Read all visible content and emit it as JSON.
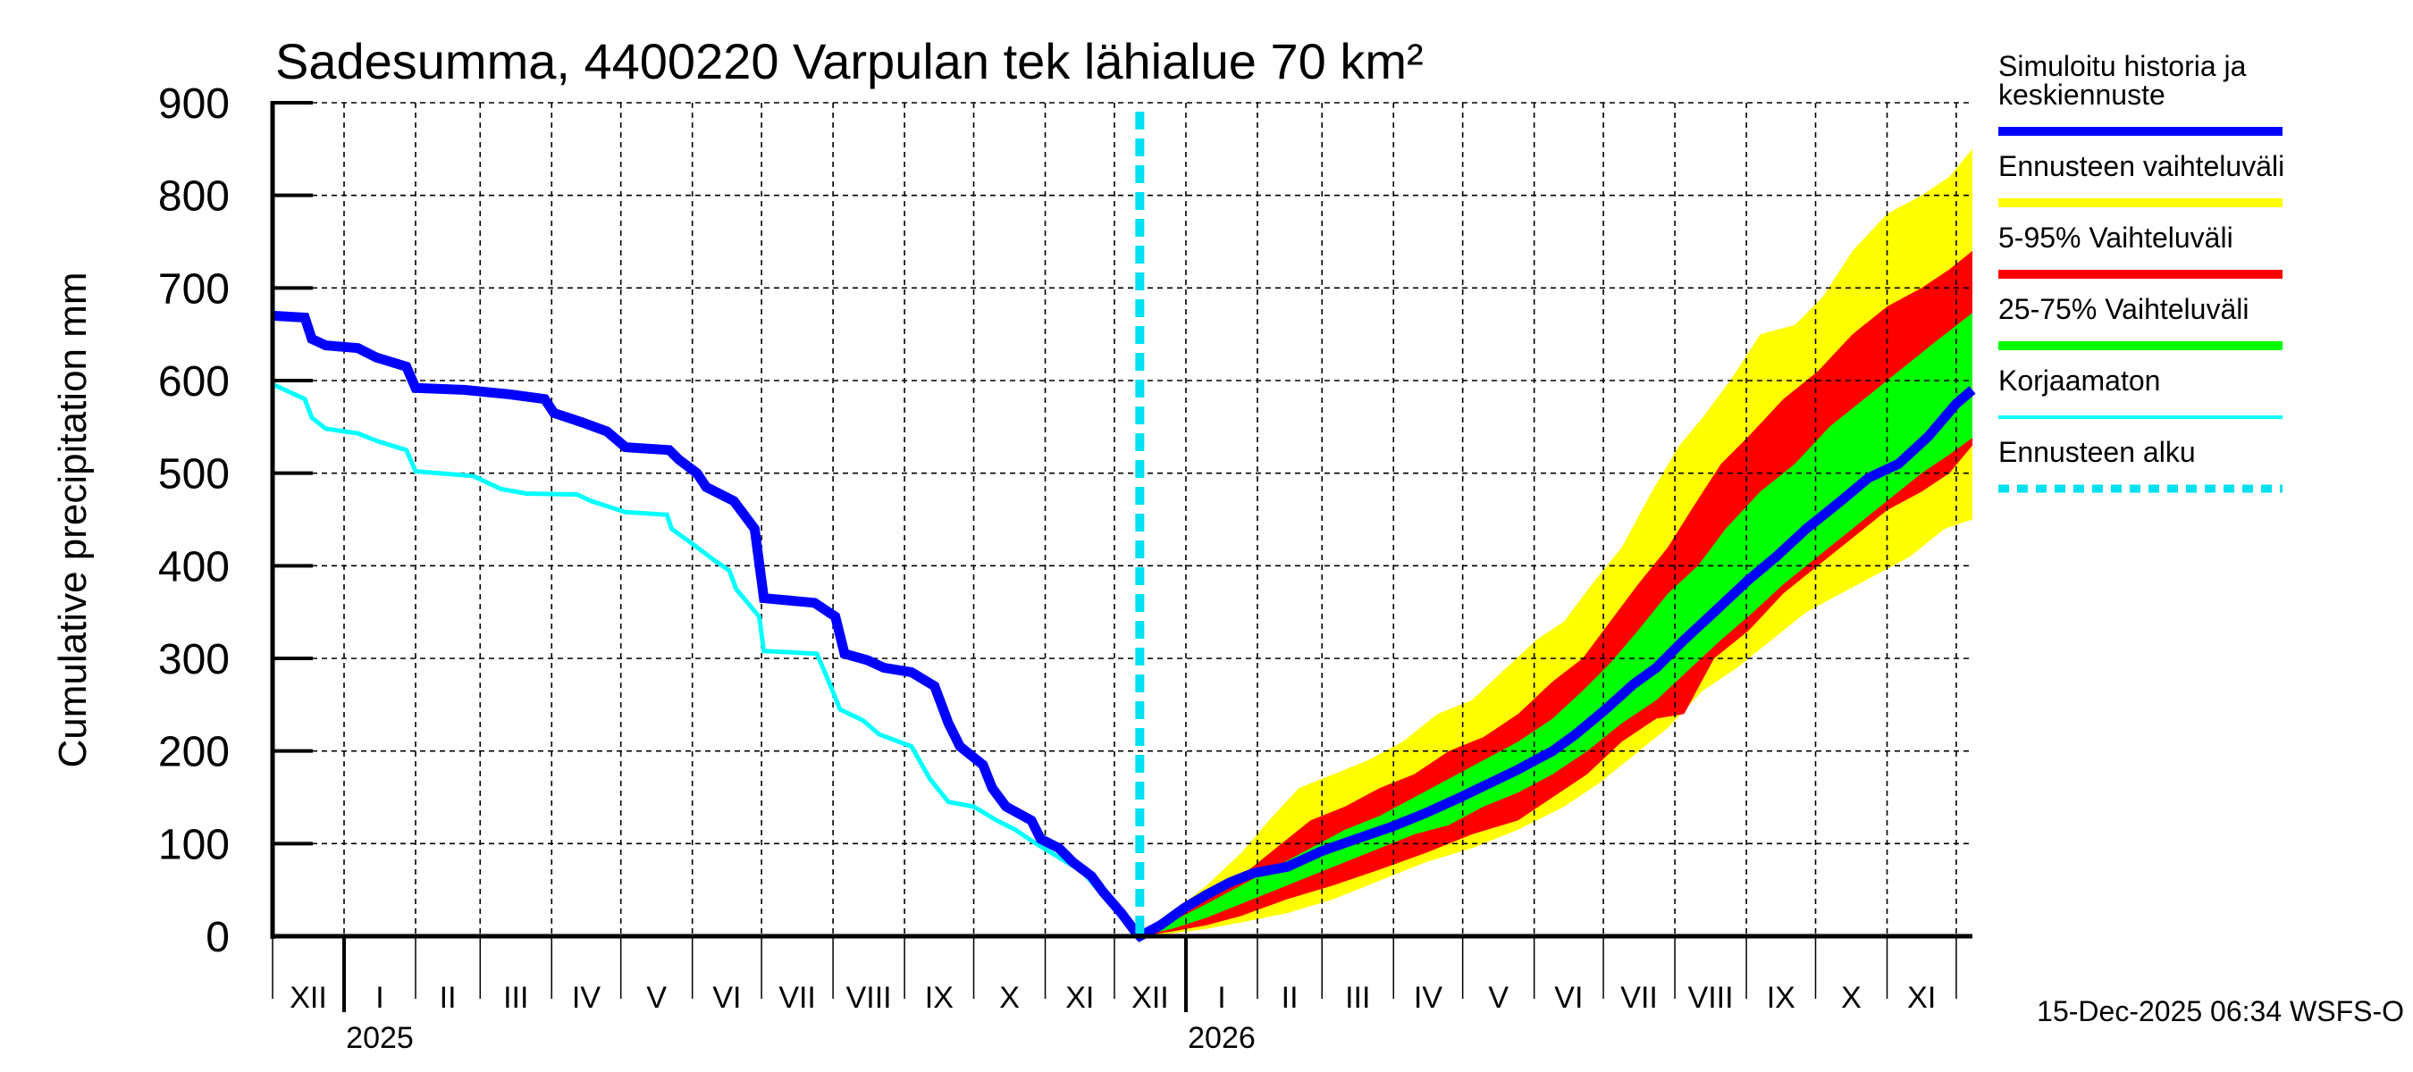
{
  "chart_data": {
    "type": "area",
    "title": "Sadesumma, 4400220 Varpulan tek lähialue 70 km²",
    "ylabel": "Cumulative precipitation   mm",
    "xlabel": "",
    "ylim": [
      0,
      900
    ],
    "yticks": [
      0,
      100,
      200,
      300,
      400,
      500,
      600,
      700,
      800,
      900
    ],
    "grid": true,
    "x_unit": "days since 2024-12-01",
    "xlim": [
      0,
      737
    ],
    "forecast_start_day": 376,
    "month_ticks": [
      {
        "day": 0,
        "label": "XII"
      },
      {
        "day": 31,
        "label": "I"
      },
      {
        "day": 62,
        "label": "II"
      },
      {
        "day": 90,
        "label": "III"
      },
      {
        "day": 121,
        "label": "IV"
      },
      {
        "day": 151,
        "label": "V"
      },
      {
        "day": 182,
        "label": "VI"
      },
      {
        "day": 212,
        "label": "VII"
      },
      {
        "day": 243,
        "label": "VIII"
      },
      {
        "day": 274,
        "label": "IX"
      },
      {
        "day": 304,
        "label": "X"
      },
      {
        "day": 335,
        "label": "XI"
      },
      {
        "day": 365,
        "label": "XII"
      },
      {
        "day": 396,
        "label": "I"
      },
      {
        "day": 427,
        "label": "II"
      },
      {
        "day": 455,
        "label": "III"
      },
      {
        "day": 486,
        "label": "IV"
      },
      {
        "day": 516,
        "label": "V"
      },
      {
        "day": 547,
        "label": "VI"
      },
      {
        "day": 577,
        "label": "VII"
      },
      {
        "day": 608,
        "label": "VIII"
      },
      {
        "day": 639,
        "label": "IX"
      },
      {
        "day": 669,
        "label": "X"
      },
      {
        "day": 700,
        "label": "XI"
      },
      {
        "day": 730,
        "label": ""
      }
    ],
    "year_ticks": [
      {
        "day": 31,
        "label": "2025"
      },
      {
        "day": 396,
        "label": "2026"
      }
    ],
    "series": [
      {
        "name": "Simuloitu historia ja keskiennuste",
        "kind": "line",
        "color": "#0000ff",
        "points": [
          [
            0,
            670
          ],
          [
            14,
            668
          ],
          [
            17,
            645
          ],
          [
            23,
            638
          ],
          [
            37,
            635
          ],
          [
            45,
            625
          ],
          [
            58,
            615
          ],
          [
            62,
            592
          ],
          [
            83,
            590
          ],
          [
            103,
            585
          ],
          [
            118,
            580
          ],
          [
            122,
            565
          ],
          [
            134,
            555
          ],
          [
            145,
            545
          ],
          [
            153,
            528
          ],
          [
            172,
            525
          ],
          [
            176,
            515
          ],
          [
            184,
            500
          ],
          [
            188,
            485
          ],
          [
            200,
            470
          ],
          [
            209,
            440
          ],
          [
            213,
            365
          ],
          [
            235,
            360
          ],
          [
            244,
            345
          ],
          [
            248,
            305
          ],
          [
            258,
            298
          ],
          [
            265,
            290
          ],
          [
            277,
            285
          ],
          [
            287,
            270
          ],
          [
            293,
            230
          ],
          [
            298,
            205
          ],
          [
            308,
            185
          ],
          [
            312,
            160
          ],
          [
            318,
            140
          ],
          [
            329,
            125
          ],
          [
            333,
            105
          ],
          [
            341,
            95
          ],
          [
            347,
            80
          ],
          [
            355,
            65
          ],
          [
            360,
            48
          ],
          [
            368,
            25
          ],
          [
            374,
            5
          ],
          [
            376,
            0
          ],
          [
            385,
            12
          ],
          [
            395,
            30
          ],
          [
            405,
            45
          ],
          [
            415,
            58
          ],
          [
            425,
            68
          ],
          [
            440,
            75
          ],
          [
            455,
            92
          ],
          [
            470,
            105
          ],
          [
            485,
            118
          ],
          [
            500,
            133
          ],
          [
            515,
            150
          ],
          [
            525,
            162
          ],
          [
            540,
            180
          ],
          [
            555,
            200
          ],
          [
            565,
            218
          ],
          [
            578,
            245
          ],
          [
            590,
            272
          ],
          [
            600,
            290
          ],
          [
            612,
            320
          ],
          [
            625,
            350
          ],
          [
            640,
            385
          ],
          [
            652,
            410
          ],
          [
            665,
            440
          ],
          [
            680,
            470
          ],
          [
            692,
            495
          ],
          [
            705,
            510
          ],
          [
            718,
            540
          ],
          [
            730,
            575
          ],
          [
            737,
            590
          ]
        ]
      },
      {
        "name": "Korjaamaton",
        "kind": "line",
        "color": "#00ffff",
        "points": [
          [
            0,
            596
          ],
          [
            14,
            580
          ],
          [
            17,
            560
          ],
          [
            23,
            548
          ],
          [
            37,
            543
          ],
          [
            45,
            535
          ],
          [
            58,
            525
          ],
          [
            62,
            502
          ],
          [
            87,
            497
          ],
          [
            99,
            483
          ],
          [
            110,
            478
          ],
          [
            132,
            477
          ],
          [
            138,
            470
          ],
          [
            153,
            458
          ],
          [
            171,
            455
          ],
          [
            173,
            440
          ],
          [
            184,
            420
          ],
          [
            192,
            405
          ],
          [
            198,
            395
          ],
          [
            201,
            375
          ],
          [
            211,
            345
          ],
          [
            213,
            308
          ],
          [
            236,
            305
          ],
          [
            242,
            270
          ],
          [
            246,
            245
          ],
          [
            256,
            233
          ],
          [
            263,
            218
          ],
          [
            277,
            205
          ],
          [
            285,
            170
          ],
          [
            293,
            145
          ],
          [
            304,
            140
          ],
          [
            314,
            125
          ],
          [
            322,
            115
          ],
          [
            331,
            100
          ],
          [
            341,
            85
          ],
          [
            351,
            70
          ],
          [
            358,
            50
          ],
          [
            364,
            35
          ],
          [
            371,
            20
          ],
          [
            374,
            10
          ],
          [
            376,
            0
          ]
        ]
      },
      {
        "name": "Ennusteen vaihteluväli",
        "kind": "band",
        "color": "#ffff00",
        "upper": [
          [
            376,
            0
          ],
          [
            390,
            25
          ],
          [
            405,
            55
          ],
          [
            420,
            90
          ],
          [
            432,
            125
          ],
          [
            445,
            160
          ],
          [
            460,
            175
          ],
          [
            475,
            190
          ],
          [
            490,
            210
          ],
          [
            505,
            240
          ],
          [
            520,
            255
          ],
          [
            535,
            290
          ],
          [
            548,
            320
          ],
          [
            560,
            340
          ],
          [
            572,
            380
          ],
          [
            585,
            420
          ],
          [
            598,
            480
          ],
          [
            610,
            530
          ],
          [
            620,
            560
          ],
          [
            632,
            600
          ],
          [
            645,
            650
          ],
          [
            660,
            660
          ],
          [
            672,
            690
          ],
          [
            685,
            740
          ],
          [
            700,
            780
          ],
          [
            715,
            800
          ],
          [
            727,
            820
          ],
          [
            737,
            850
          ]
        ],
        "lower": [
          [
            376,
            0
          ],
          [
            390,
            3
          ],
          [
            405,
            8
          ],
          [
            420,
            15
          ],
          [
            440,
            25
          ],
          [
            460,
            40
          ],
          [
            480,
            60
          ],
          [
            500,
            80
          ],
          [
            520,
            95
          ],
          [
            540,
            115
          ],
          [
            560,
            140
          ],
          [
            575,
            165
          ],
          [
            590,
            195
          ],
          [
            605,
            225
          ],
          [
            620,
            265
          ],
          [
            635,
            290
          ],
          [
            650,
            320
          ],
          [
            665,
            350
          ],
          [
            680,
            370
          ],
          [
            695,
            390
          ],
          [
            710,
            410
          ],
          [
            725,
            440
          ],
          [
            737,
            450
          ]
        ]
      },
      {
        "name": "5-95% Vaihteluväli",
        "kind": "band",
        "color": "#ff0000",
        "upper": [
          [
            376,
            0
          ],
          [
            390,
            20
          ],
          [
            405,
            40
          ],
          [
            420,
            65
          ],
          [
            435,
            95
          ],
          [
            450,
            125
          ],
          [
            465,
            140
          ],
          [
            480,
            160
          ],
          [
            495,
            175
          ],
          [
            510,
            200
          ],
          [
            525,
            215
          ],
          [
            540,
            240
          ],
          [
            555,
            275
          ],
          [
            568,
            300
          ],
          [
            580,
            340
          ],
          [
            592,
            380
          ],
          [
            605,
            420
          ],
          [
            615,
            460
          ],
          [
            628,
            510
          ],
          [
            640,
            540
          ],
          [
            655,
            580
          ],
          [
            670,
            610
          ],
          [
            685,
            650
          ],
          [
            700,
            680
          ],
          [
            715,
            700
          ],
          [
            727,
            720
          ],
          [
            737,
            740
          ]
        ],
        "lower": [
          [
            376,
            0
          ],
          [
            390,
            5
          ],
          [
            405,
            12
          ],
          [
            420,
            22
          ],
          [
            440,
            40
          ],
          [
            460,
            55
          ],
          [
            480,
            72
          ],
          [
            500,
            90
          ],
          [
            520,
            110
          ],
          [
            540,
            125
          ],
          [
            555,
            150
          ],
          [
            570,
            175
          ],
          [
            585,
            210
          ],
          [
            600,
            235
          ],
          [
            612,
            240
          ],
          [
            625,
            300
          ],
          [
            640,
            330
          ],
          [
            655,
            370
          ],
          [
            670,
            400
          ],
          [
            685,
            430
          ],
          [
            700,
            460
          ],
          [
            715,
            480
          ],
          [
            727,
            500
          ],
          [
            737,
            530
          ]
        ]
      },
      {
        "name": "25-75% Vaihteluväli",
        "kind": "band",
        "color": "#00ff00",
        "upper": [
          [
            376,
            0
          ],
          [
            390,
            16
          ],
          [
            405,
            35
          ],
          [
            420,
            55
          ],
          [
            435,
            75
          ],
          [
            450,
            95
          ],
          [
            465,
            115
          ],
          [
            480,
            130
          ],
          [
            495,
            150
          ],
          [
            510,
            170
          ],
          [
            525,
            190
          ],
          [
            540,
            210
          ],
          [
            555,
            235
          ],
          [
            568,
            265
          ],
          [
            580,
            295
          ],
          [
            592,
            330
          ],
          [
            605,
            370
          ],
          [
            618,
            400
          ],
          [
            630,
            440
          ],
          [
            645,
            480
          ],
          [
            660,
            510
          ],
          [
            675,
            550
          ],
          [
            690,
            580
          ],
          [
            705,
            610
          ],
          [
            720,
            640
          ],
          [
            737,
            673
          ]
        ],
        "lower": [
          [
            376,
            0
          ],
          [
            390,
            8
          ],
          [
            405,
            20
          ],
          [
            420,
            35
          ],
          [
            435,
            50
          ],
          [
            450,
            65
          ],
          [
            465,
            80
          ],
          [
            480,
            95
          ],
          [
            495,
            110
          ],
          [
            510,
            120
          ],
          [
            525,
            140
          ],
          [
            540,
            155
          ],
          [
            555,
            175
          ],
          [
            570,
            200
          ],
          [
            585,
            230
          ],
          [
            600,
            255
          ],
          [
            615,
            290
          ],
          [
            628,
            320
          ],
          [
            642,
            350
          ],
          [
            655,
            380
          ],
          [
            670,
            410
          ],
          [
            685,
            440
          ],
          [
            700,
            470
          ],
          [
            715,
            500
          ],
          [
            727,
            520
          ],
          [
            737,
            538
          ]
        ]
      }
    ],
    "forecast_start_line": {
      "name": "Ennusteen alku",
      "color": "#00e0f0"
    },
    "legend": {
      "placement": "right",
      "entries": [
        {
          "label_lines": [
            "Simuloitu historia ja",
            "keskiennuste"
          ],
          "color": "#0000ff",
          "style": "thick"
        },
        {
          "label_lines": [
            "Ennusteen vaihteluväli"
          ],
          "color": "#ffff00",
          "style": "thick"
        },
        {
          "label_lines": [
            "5-95% Vaihteluväli"
          ],
          "color": "#ff0000",
          "style": "thick"
        },
        {
          "label_lines": [
            "25-75% Vaihteluväli"
          ],
          "color": "#00ff00",
          "style": "thick"
        },
        {
          "label_lines": [
            "Korjaamaton"
          ],
          "color": "#00ffff",
          "style": "thin"
        },
        {
          "label_lines": [
            "Ennusteen alku"
          ],
          "color": "#00e0f0",
          "style": "dashed"
        }
      ]
    },
    "footer": "15-Dec-2025 06:34 WSFS-O"
  }
}
